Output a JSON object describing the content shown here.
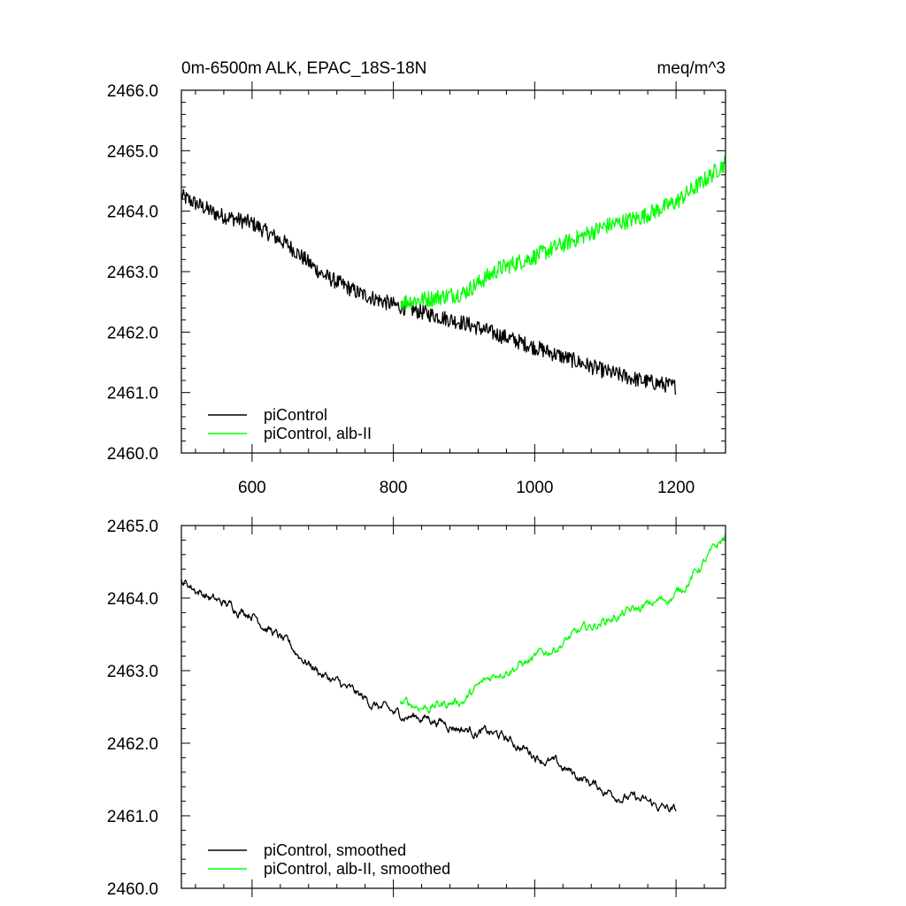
{
  "chart_data": [
    {
      "type": "line",
      "title_left": "0m-6500m ALK, EPAC_18S-18N",
      "title_right": "meq/m^3",
      "xlabel": "",
      "ylabel": "",
      "xlim": [
        500,
        1270
      ],
      "ylim": [
        2460.0,
        2466.0
      ],
      "x_ticks": [
        600,
        800,
        1000,
        1200
      ],
      "x_tick_labels": [
        "600",
        "800",
        "1000",
        "1200"
      ],
      "y_ticks": [
        2460,
        2461,
        2462,
        2463,
        2464,
        2465,
        2466
      ],
      "y_tick_labels": [
        "2460.0",
        "2461.0",
        "2462.0",
        "2463.0",
        "2464.0",
        "2465.0",
        "2466.0"
      ],
      "legend_position": "bottom-left",
      "series": [
        {
          "name": "piControl",
          "color": "#000000",
          "x": [
            500,
            550,
            600,
            650,
            700,
            750,
            800,
            850,
            900,
            950,
            1000,
            1050,
            1100,
            1150,
            1200
          ],
          "values": [
            2464.25,
            2463.95,
            2463.8,
            2463.45,
            2462.95,
            2462.65,
            2462.45,
            2462.3,
            2462.15,
            2461.95,
            2461.75,
            2461.55,
            2461.35,
            2461.2,
            2461.1
          ],
          "noise": 0.13
        },
        {
          "name": "piControl, alb-II",
          "color": "#00ff00",
          "x": [
            810,
            850,
            900,
            950,
            1000,
            1050,
            1100,
            1150,
            1200,
            1250,
            1270
          ],
          "values": [
            2462.5,
            2462.55,
            2462.65,
            2463.05,
            2463.25,
            2463.5,
            2463.75,
            2463.9,
            2464.15,
            2464.6,
            2464.8
          ],
          "noise": 0.14
        }
      ]
    },
    {
      "type": "line",
      "xlabel": "",
      "ylabel": "",
      "xlim": [
        500,
        1270
      ],
      "ylim": [
        2460.0,
        2465.0
      ],
      "x_ticks": [
        600,
        800,
        1000,
        1200
      ],
      "y_ticks": [
        2460,
        2461,
        2462,
        2463,
        2464,
        2465
      ],
      "y_tick_labels": [
        "2460.0",
        "2461.0",
        "2462.0",
        "2463.0",
        "2464.0",
        "2465.0"
      ],
      "legend_position": "bottom-left",
      "series": [
        {
          "name": "piControl, smoothed",
          "color": "#000000",
          "x": [
            500,
            550,
            600,
            650,
            700,
            750,
            800,
            850,
            900,
            950,
            1000,
            1050,
            1100,
            1150,
            1200
          ],
          "values": [
            2464.25,
            2463.95,
            2463.8,
            2463.35,
            2462.95,
            2462.65,
            2462.4,
            2462.35,
            2462.2,
            2462.1,
            2461.85,
            2461.6,
            2461.35,
            2461.2,
            2461.05
          ],
          "noise": 0.04
        },
        {
          "name": "piControl, alb-II, smoothed",
          "color": "#00ff00",
          "x": [
            810,
            850,
            900,
            950,
            1000,
            1050,
            1100,
            1150,
            1200,
            1250,
            1270
          ],
          "values": [
            2462.55,
            2462.5,
            2462.6,
            2463.0,
            2463.15,
            2463.45,
            2463.7,
            2463.85,
            2464.05,
            2464.6,
            2464.85
          ],
          "noise": 0.04
        }
      ]
    }
  ]
}
